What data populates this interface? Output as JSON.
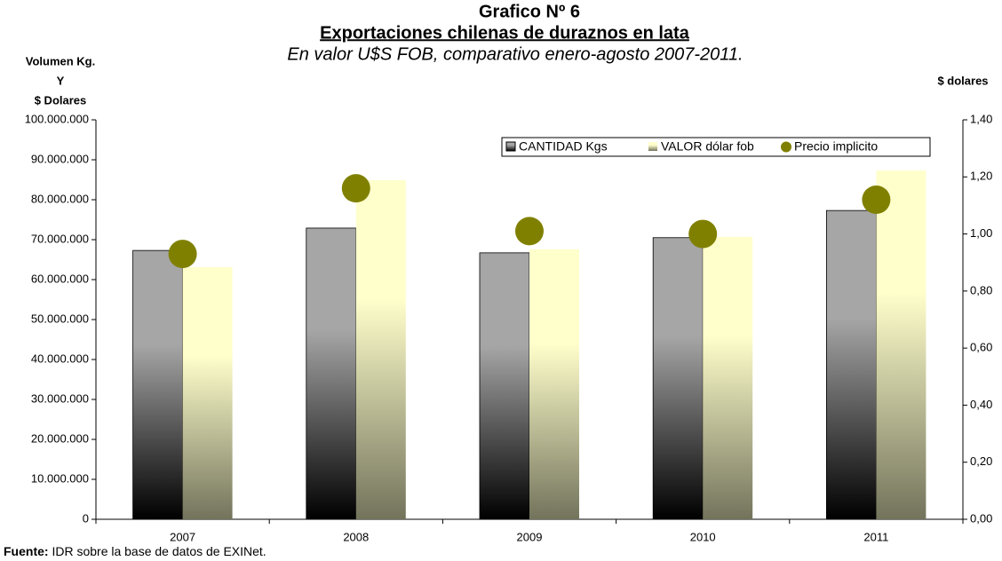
{
  "chart_data": {
    "type": "bar",
    "title": "Grafico Nº 6",
    "subtitle": "Exportaciones chilenas de duraznos en lata",
    "subtitle2": "En valor U$S FOB, comparativo enero-agosto 2007-2011.",
    "y_label": [
      "Volumen Kg.",
      "Y",
      "$ Dolares"
    ],
    "y2_label": "$ dolares",
    "source_label": "Fuente:",
    "source": "IDR sobre la base de datos de EXINet.",
    "categories": [
      "2007",
      "2008",
      "2009",
      "2010",
      "2011"
    ],
    "series": [
      {
        "name": "CANTIDAD Kgs",
        "color": "#a6a6a6",
        "type": "bar",
        "values": [
          67300000,
          72900000,
          66700000,
          70500000,
          77300000
        ]
      },
      {
        "name": "VALOR dólar fob",
        "color": "#ffffcc",
        "type": "bar",
        "values": [
          63100000,
          84900000,
          67600000,
          70700000,
          87300000
        ]
      },
      {
        "name": "Precio implicito",
        "color": "#808000",
        "type": "scatter",
        "axis": "y2",
        "values": [
          0.93,
          1.16,
          1.01,
          1.0,
          1.12
        ]
      }
    ],
    "ylim": [
      0,
      100000000
    ],
    "yticks": [
      0,
      {
        "value": 10000000,
        "label": "10.000.000"
      },
      {
        "value": 20000000,
        "label": "20.000.000"
      },
      {
        "value": 30000000,
        "label": "30.000.000"
      },
      {
        "value": 40000000,
        "label": "40.000.000"
      },
      {
        "value": 50000000,
        "label": "50.000.000"
      },
      {
        "value": 60000000,
        "label": "60.000.000"
      },
      {
        "value": 70000000,
        "label": "70.000.000"
      },
      {
        "value": 80000000,
        "label": "80.000.000"
      },
      {
        "value": 90000000,
        "label": "90.000.000"
      },
      {
        "value": 100000000,
        "label": "100.000.000"
      }
    ],
    "y2lim": [
      0,
      1.4
    ],
    "y2ticks": [
      {
        "value": 0,
        "label": "0,00"
      },
      {
        "value": 0.2,
        "label": "0,20"
      },
      {
        "value": 0.4,
        "label": "0,40"
      },
      {
        "value": 0.6,
        "label": "0,60"
      },
      {
        "value": 0.8,
        "label": "0,80"
      },
      {
        "value": 1.0,
        "label": "1,00"
      },
      {
        "value": 1.2,
        "label": "1,20"
      },
      {
        "value": 1.4,
        "label": "1,40"
      }
    ],
    "legend": "top-right"
  }
}
